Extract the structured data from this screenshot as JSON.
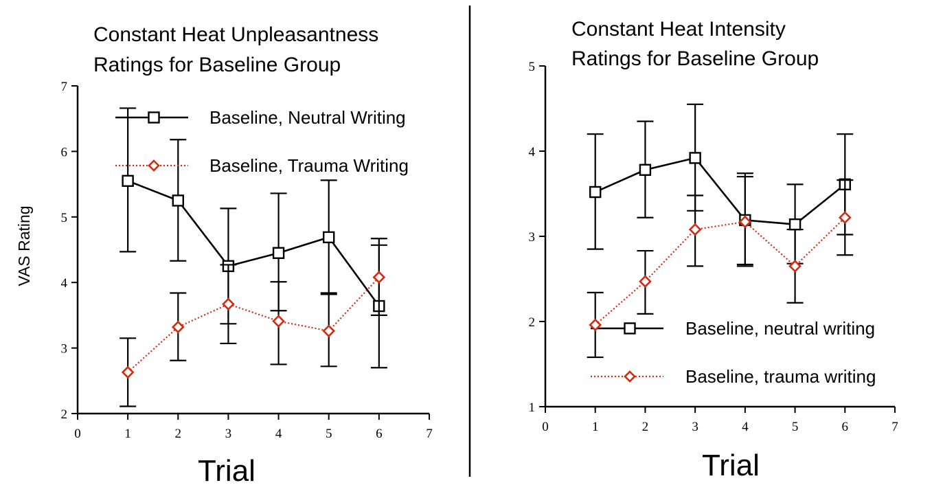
{
  "colors": {
    "neutral": "#000000",
    "trauma": "#d42a10",
    "divider": "#000000"
  },
  "chart_data": [
    {
      "type": "line",
      "title": [
        "Constant Heat Unpleasantness",
        "Ratings for Baseline Group"
      ],
      "xlabel": "Trial",
      "ylabel": "VAS Rating",
      "xlim": [
        0,
        7
      ],
      "ylim": [
        2,
        7
      ],
      "xticks": [
        "0",
        "1",
        "2",
        "3",
        "4",
        "5",
        "6",
        "7"
      ],
      "yticks": [
        "2",
        "3",
        "4",
        "5",
        "6",
        "7"
      ],
      "grid": false,
      "legend_position": "top-right",
      "series": [
        {
          "name": "Baseline, Neutral Writing",
          "marker": "square",
          "line": "solid",
          "x": [
            1,
            2,
            3,
            4,
            5,
            6
          ],
          "y": [
            5.55,
            5.25,
            4.25,
            4.45,
            4.69,
            3.64
          ],
          "err_low": [
            4.47,
            4.33,
            3.37,
            3.57,
            3.82,
            2.7
          ],
          "err_high": [
            6.66,
            6.18,
            5.13,
            5.36,
            5.56,
            4.57
          ]
        },
        {
          "name": "Baseline, Trauma Writing",
          "marker": "diamond",
          "line": "dotted",
          "x": [
            1,
            2,
            3,
            4,
            5,
            6
          ],
          "y": [
            2.63,
            3.32,
            3.67,
            3.41,
            3.26,
            4.08
          ],
          "err_low": [
            2.11,
            2.81,
            3.07,
            2.75,
            2.72,
            3.5
          ],
          "err_high": [
            3.15,
            3.84,
            4.27,
            4.01,
            3.84,
            4.67
          ]
        }
      ]
    },
    {
      "type": "line",
      "title": [
        "Constant Heat Intensity",
        "Ratings for Baseline Group"
      ],
      "xlabel": "Trial",
      "ylabel": "",
      "xlim": [
        0,
        7
      ],
      "ylim": [
        1,
        5
      ],
      "xticks": [
        "0",
        "1",
        "2",
        "3",
        "4",
        "5",
        "6",
        "7"
      ],
      "yticks": [
        "1",
        "2",
        "3",
        "4",
        "5"
      ],
      "grid": false,
      "legend_position": "bottom-right",
      "series": [
        {
          "name": "Baseline, neutral writing",
          "marker": "square",
          "line": "solid",
          "x": [
            1,
            2,
            3,
            4,
            5,
            6
          ],
          "y": [
            3.52,
            3.78,
            3.92,
            3.19,
            3.14,
            3.61
          ],
          "err_low": [
            2.85,
            3.22,
            3.3,
            2.65,
            2.68,
            3.02
          ],
          "err_high": [
            4.2,
            4.35,
            4.55,
            3.74,
            3.61,
            4.2
          ]
        },
        {
          "name": "Baseline, trauma writing",
          "marker": "diamond",
          "line": "dotted",
          "x": [
            1,
            2,
            3,
            4,
            5,
            6
          ],
          "y": [
            1.96,
            2.47,
            3.08,
            3.17,
            2.65,
            3.22
          ],
          "err_low": [
            1.58,
            2.09,
            2.65,
            2.67,
            2.22,
            2.78
          ],
          "err_high": [
            2.34,
            2.83,
            3.48,
            3.7,
            3.08,
            3.66
          ]
        }
      ]
    }
  ]
}
